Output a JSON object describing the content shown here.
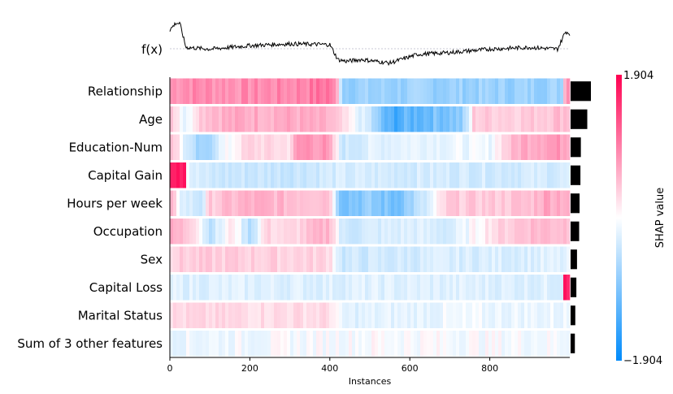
{
  "chart_data": {
    "type": "heatmap",
    "title": "",
    "xlabel": "Instances",
    "ylabel": "",
    "fx_label": "f(x)",
    "n_instances": 1000,
    "xlim": [
      0,
      1000
    ],
    "x_ticks": [
      0,
      200,
      400,
      600,
      800
    ],
    "colorbar": {
      "label": "SHAP value",
      "max": 1.904,
      "min": -1.904,
      "max_label": "1.904",
      "min_label": "−1.904"
    },
    "colors": {
      "positive": "#ff0051",
      "negative": "#008bfb",
      "neutral": "#ffffff",
      "bar": "#000000"
    },
    "features": [
      {
        "name": "Relationship",
        "mean_abs_shap": 0.95,
        "profile": [
          [
            0,
            0.55
          ],
          [
            40,
            0.65
          ],
          [
            120,
            0.6
          ],
          [
            200,
            0.6
          ],
          [
            300,
            0.65
          ],
          [
            360,
            0.75
          ],
          [
            400,
            0.85
          ],
          [
            425,
            0.1
          ],
          [
            430,
            -0.5
          ],
          [
            520,
            -0.5
          ],
          [
            600,
            -0.5
          ],
          [
            700,
            -0.5
          ],
          [
            880,
            -0.5
          ],
          [
            980,
            -0.45
          ],
          [
            990,
            0.7
          ],
          [
            1000,
            0.7
          ]
        ]
      },
      {
        "name": "Age",
        "mean_abs_shap": 0.78,
        "profile": [
          [
            0,
            0.3
          ],
          [
            40,
            -0.1
          ],
          [
            70,
            0.2
          ],
          [
            100,
            0.35
          ],
          [
            200,
            0.4
          ],
          [
            300,
            0.4
          ],
          [
            400,
            0.3
          ],
          [
            430,
            0.1
          ],
          [
            500,
            -0.2
          ],
          [
            550,
            -1.2
          ],
          [
            600,
            -1.0
          ],
          [
            650,
            -0.8
          ],
          [
            730,
            -0.6
          ],
          [
            760,
            0.2
          ],
          [
            800,
            0.2
          ],
          [
            900,
            0.2
          ],
          [
            980,
            0.3
          ],
          [
            1000,
            0.3
          ]
        ]
      },
      {
        "name": "Education-Num",
        "mean_abs_shap": 0.48,
        "profile": [
          [
            0,
            0.35
          ],
          [
            20,
            0.1
          ],
          [
            80,
            -0.6
          ],
          [
            120,
            -0.1
          ],
          [
            200,
            0.15
          ],
          [
            300,
            0.1
          ],
          [
            320,
            0.5
          ],
          [
            350,
            0.6
          ],
          [
            390,
            0.5
          ],
          [
            430,
            -0.2
          ],
          [
            500,
            -0.1
          ],
          [
            600,
            -0.05
          ],
          [
            700,
            -0.05
          ],
          [
            800,
            -0.05
          ],
          [
            880,
            0.4
          ],
          [
            920,
            0.5
          ],
          [
            1000,
            0.5
          ]
        ]
      },
      {
        "name": "Capital Gain",
        "mean_abs_shap": 0.46,
        "profile": [
          [
            0,
            1.9
          ],
          [
            40,
            1.9
          ],
          [
            45,
            -0.08
          ],
          [
            100,
            -0.2
          ],
          [
            200,
            -0.2
          ],
          [
            300,
            -0.2
          ],
          [
            400,
            -0.15
          ],
          [
            600,
            -0.15
          ],
          [
            800,
            -0.15
          ],
          [
            1000,
            -0.15
          ]
        ]
      },
      {
        "name": "Hours per week",
        "mean_abs_shap": 0.42,
        "profile": [
          [
            0,
            0.3
          ],
          [
            30,
            -0.1
          ],
          [
            80,
            -0.2
          ],
          [
            100,
            0.2
          ],
          [
            200,
            0.35
          ],
          [
            300,
            0.3
          ],
          [
            400,
            0.3
          ],
          [
            430,
            -0.7
          ],
          [
            500,
            -0.6
          ],
          [
            560,
            -0.8
          ],
          [
            620,
            -0.3
          ],
          [
            700,
            0.2
          ],
          [
            800,
            0.2
          ],
          [
            900,
            0.25
          ],
          [
            940,
            0.45
          ],
          [
            1000,
            0.4
          ]
        ]
      },
      {
        "name": "Occupation",
        "mean_abs_shap": 0.4,
        "profile": [
          [
            0,
            0.35
          ],
          [
            60,
            0.2
          ],
          [
            100,
            -0.25
          ],
          [
            160,
            0.1
          ],
          [
            200,
            -0.3
          ],
          [
            240,
            0.15
          ],
          [
            300,
            0.1
          ],
          [
            400,
            0.35
          ],
          [
            430,
            -0.2
          ],
          [
            500,
            -0.15
          ],
          [
            600,
            -0.1
          ],
          [
            700,
            -0.15
          ],
          [
            800,
            0.1
          ],
          [
            900,
            0.3
          ],
          [
            1000,
            0.3
          ]
        ]
      },
      {
        "name": "Sex",
        "mean_abs_shap": 0.3,
        "profile": [
          [
            0,
            0.18
          ],
          [
            200,
            0.18
          ],
          [
            400,
            0.15
          ],
          [
            430,
            -0.2
          ],
          [
            600,
            -0.15
          ],
          [
            800,
            -0.12
          ],
          [
            1000,
            -0.1
          ]
        ]
      },
      {
        "name": "Capital Loss",
        "mean_abs_shap": 0.27,
        "profile": [
          [
            0,
            -0.1
          ],
          [
            300,
            -0.1
          ],
          [
            500,
            -0.1
          ],
          [
            700,
            -0.1
          ],
          [
            900,
            -0.1
          ],
          [
            980,
            -0.1
          ],
          [
            985,
            1.9
          ],
          [
            1000,
            1.9
          ]
        ]
      },
      {
        "name": "Marital Status",
        "mean_abs_shap": 0.22,
        "profile": [
          [
            0,
            0.12
          ],
          [
            200,
            0.12
          ],
          [
            400,
            0.12
          ],
          [
            430,
            -0.1
          ],
          [
            700,
            -0.05
          ],
          [
            1000,
            -0.05
          ]
        ]
      },
      {
        "name": "Sum of 3 other features",
        "mean_abs_shap": 0.2,
        "profile": [
          [
            0,
            -0.05
          ],
          [
            500,
            0.0
          ],
          [
            1000,
            -0.02
          ]
        ]
      }
    ],
    "fx_profile": [
      [
        0,
        0.6
      ],
      [
        15,
        0.8
      ],
      [
        25,
        0.78
      ],
      [
        40,
        0.1
      ],
      [
        100,
        0.05
      ],
      [
        200,
        0.15
      ],
      [
        300,
        0.2
      ],
      [
        400,
        0.18
      ],
      [
        420,
        -0.25
      ],
      [
        440,
        -0.3
      ],
      [
        480,
        -0.25
      ],
      [
        550,
        -0.35
      ],
      [
        620,
        -0.1
      ],
      [
        700,
        -0.05
      ],
      [
        800,
        0.05
      ],
      [
        900,
        0.1
      ],
      [
        970,
        0.05
      ],
      [
        985,
        0.45
      ],
      [
        990,
        0.55
      ],
      [
        1000,
        0.5
      ]
    ]
  }
}
